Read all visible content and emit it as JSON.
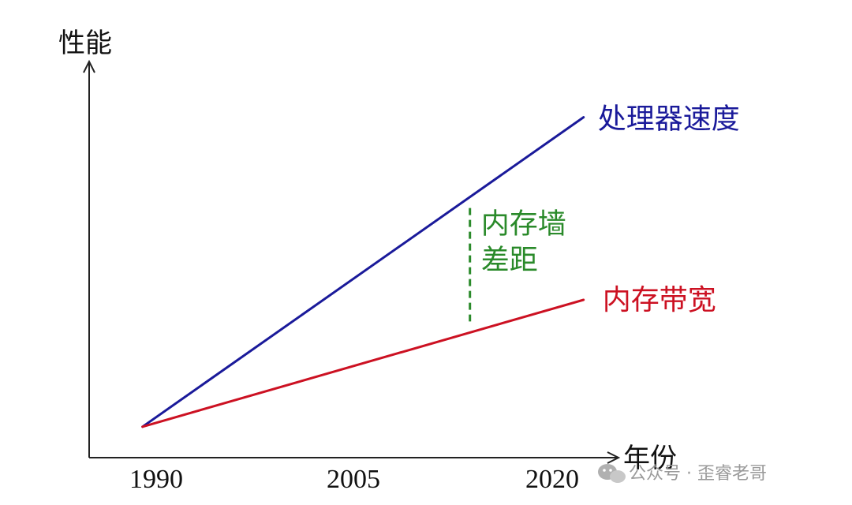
{
  "chart_data": {
    "type": "line",
    "xlabel": "年份",
    "ylabel": "性能",
    "x_ticks": [
      "1990",
      "2005",
      "2020"
    ],
    "series": [
      {
        "name": "处理器速度",
        "color": "#1a1a9a",
        "points": [
          [
            1988.5,
            0
          ],
          [
            2021.5,
            100
          ]
        ]
      },
      {
        "name": "内存带宽",
        "color": "#cc1122",
        "points": [
          [
            1988.5,
            0
          ],
          [
            2021.5,
            41
          ]
        ]
      }
    ],
    "annotation": {
      "lines": [
        "内存墙",
        "差距"
      ],
      "x": 2013,
      "color": "#2a8a2a"
    },
    "xlim": [
      1984.5,
      2024
    ],
    "ylim": [
      -10,
      118
    ],
    "grid": false
  },
  "watermark": {
    "text": "公众号 · 歪睿老哥",
    "icon": "wechat-icon"
  }
}
